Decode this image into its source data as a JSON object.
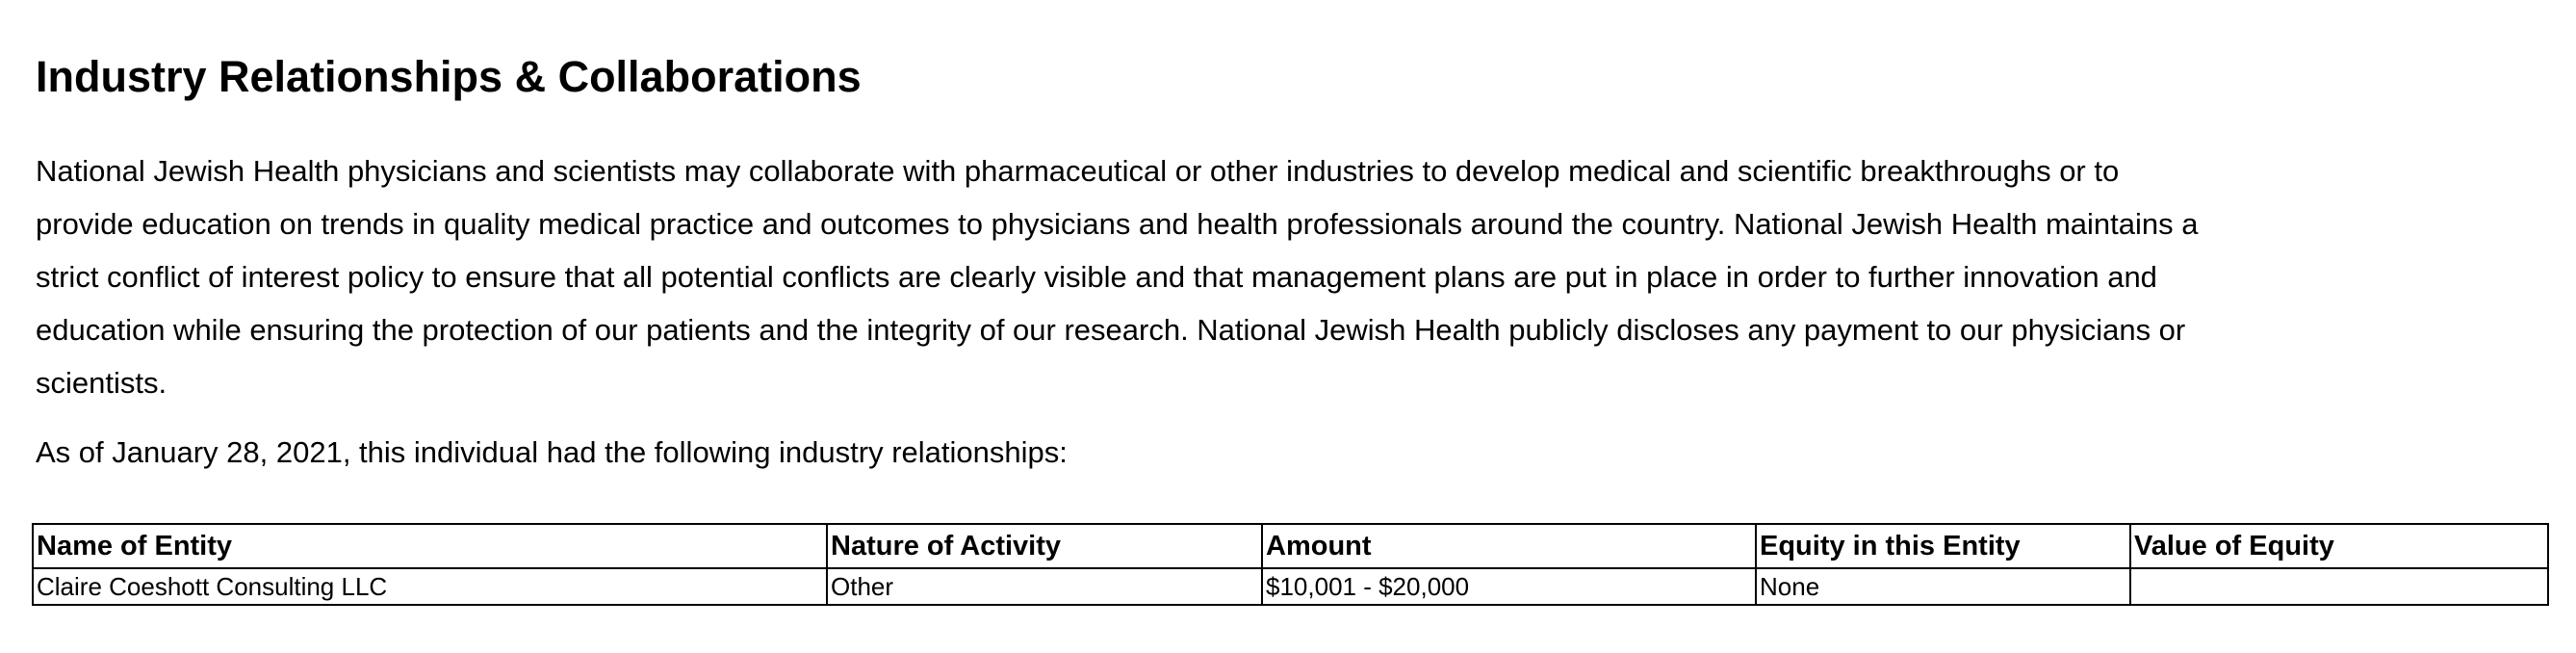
{
  "title": "Industry Relationships & Collaborations",
  "paragraph_lines": [
    "National Jewish Health physicians and scientists may collaborate with pharmaceutical or other industries to develop medical and scientific breakthroughs or to",
    "provide education on trends in quality medical practice and outcomes to physicians and health professionals around the country. National Jewish Health maintains a",
    "strict conflict of interest policy to ensure that all potential conflicts are clearly visible and that management plans are put in place in order to further innovation and",
    "education while ensuring the protection of our patients and the integrity of our research. National Jewish Health publicly discloses any payment to our physicians or",
    "scientists."
  ],
  "as_of": "As of January 28, 2021, this individual had the following industry relationships:",
  "table": {
    "headers": [
      "Name of Entity",
      "Nature of Activity",
      "Amount",
      "Equity in this Entity",
      "Value of Equity"
    ],
    "rows": [
      [
        "Claire Coeshott Consulting LLC",
        "Other",
        "$10,001 - $20,000",
        "None",
        ""
      ]
    ]
  }
}
